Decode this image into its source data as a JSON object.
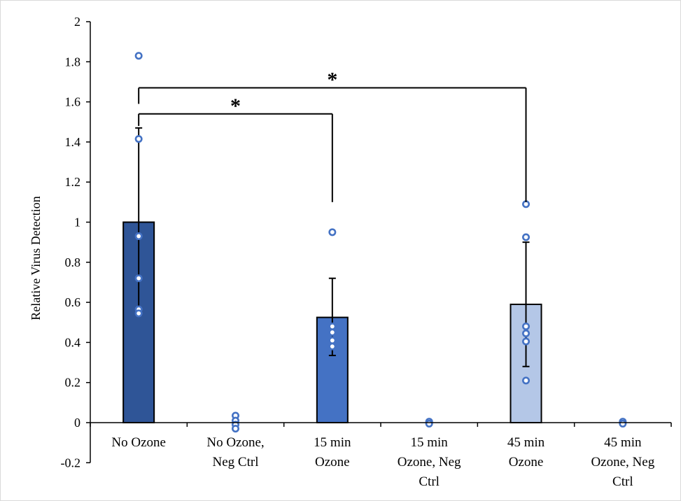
{
  "chart_data": {
    "type": "bar",
    "title": "",
    "xlabel": "",
    "ylabel": "Relative Virus Detection",
    "ylim": [
      -0.2,
      2
    ],
    "yticks": [
      -0.2,
      0,
      0.2,
      0.4,
      0.6,
      0.8,
      1,
      1.2,
      1.4,
      1.6,
      1.8,
      2
    ],
    "ytick_labels": [
      "-0.2",
      "0",
      "0.2",
      "0.4",
      "0.6",
      "0.8",
      "1",
      "1.2",
      "1.4",
      "1.6",
      "1.8",
      "2"
    ],
    "grid": false,
    "legend": "none",
    "categories": [
      [
        "No Ozone"
      ],
      [
        "No Ozone,",
        "Neg Ctrl"
      ],
      [
        "15 min",
        "Ozone"
      ],
      [
        "15 min",
        "Ozone, Neg",
        "Ctrl"
      ],
      [
        "45 min",
        "Ozone"
      ],
      [
        "45 min",
        "Ozone, Neg",
        "Ctrl"
      ]
    ],
    "values": [
      1.0,
      0.0,
      0.525,
      0.0,
      0.59,
      0.0
    ],
    "error_upper": [
      0.47,
      0,
      0.195,
      0,
      0.31,
      0
    ],
    "error_lower": [
      0.46,
      0,
      0.19,
      0,
      0.31,
      0
    ],
    "bar_colors": [
      "#2f5597",
      "#4472c4",
      "#4472c4",
      "#4472c4",
      "#b4c7e7",
      "#b4c7e7"
    ],
    "points": [
      [
        1.83,
        1.415,
        0.93,
        0.72,
        0.565,
        0.545
      ],
      [
        0.035,
        0.01,
        -0.01,
        -0.03
      ],
      [
        0.95,
        0.48,
        0.45,
        0.41,
        0.38
      ],
      [
        0.005,
        -0.005
      ],
      [
        1.09,
        0.925,
        0.48,
        0.445,
        0.405,
        0.21
      ],
      [
        0.005,
        -0.005
      ]
    ],
    "point_color": "#4472c4",
    "significance": [
      {
        "from": 0,
        "to": 2,
        "bracket_y": 1.54,
        "left_drop": 1.48,
        "right_drop": 1.1,
        "label": "*"
      },
      {
        "from": 0,
        "to": 4,
        "bracket_y": 1.67,
        "left_drop": 1.59,
        "right_drop": 1.1,
        "label": "*"
      }
    ]
  }
}
